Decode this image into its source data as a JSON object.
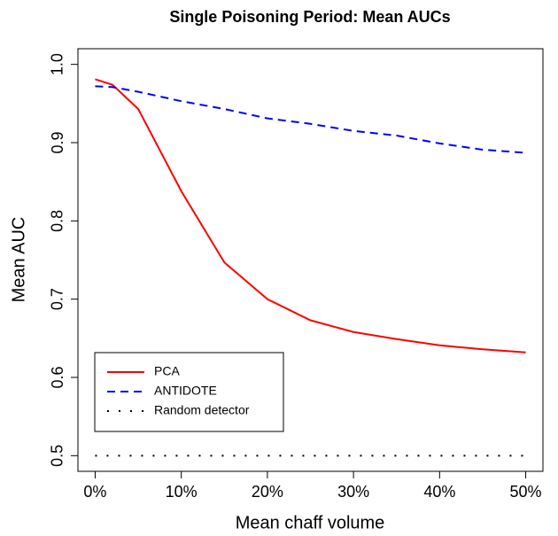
{
  "chart_data": {
    "type": "line",
    "title": "Single Poisoning Period: Mean AUCs",
    "x_label": "Mean chaff volume",
    "y_label": "Mean AUC",
    "x": [
      0,
      2,
      5,
      10,
      15,
      20,
      25,
      30,
      35,
      40,
      45,
      50
    ],
    "series": [
      {
        "name": "PCA",
        "color": "#ff0000",
        "dash": "solid",
        "values": [
          0.981,
          0.974,
          0.943,
          0.838,
          0.747,
          0.7,
          0.673,
          0.658,
          0.649,
          0.641,
          0.636,
          0.632
        ]
      },
      {
        "name": "ANTIDOTE",
        "color": "#0000ff",
        "dash": "dashed",
        "values": [
          0.972,
          0.971,
          0.965,
          0.953,
          0.943,
          0.931,
          0.924,
          0.915,
          0.909,
          0.899,
          0.891,
          0.887
        ]
      },
      {
        "name": "Random detector",
        "color": "#000000",
        "dash": "dotted",
        "values": [
          0.5,
          0.5,
          0.5,
          0.5,
          0.5,
          0.5,
          0.5,
          0.5,
          0.5,
          0.5,
          0.5,
          0.5
        ]
      }
    ],
    "xlim": [
      -2,
      52
    ],
    "ylim": [
      0.48,
      1.02
    ],
    "xticks": [
      {
        "value": 0,
        "label": "0%"
      },
      {
        "value": 10,
        "label": "10%"
      },
      {
        "value": 20,
        "label": "20%"
      },
      {
        "value": 30,
        "label": "30%"
      },
      {
        "value": 40,
        "label": "40%"
      },
      {
        "value": 50,
        "label": "50%"
      }
    ],
    "yticks": [
      0.5,
      0.6,
      0.7,
      0.8,
      0.9,
      {
        "value": 1.0,
        "label": "1.0"
      }
    ],
    "legend": "bottom-left",
    "grid": false
  }
}
